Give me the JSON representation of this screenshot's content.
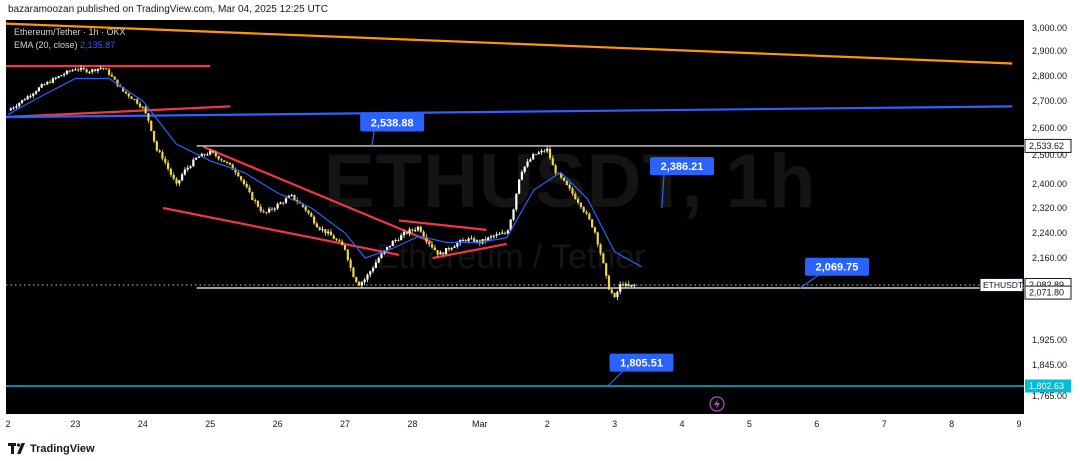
{
  "header": {
    "publisher_line": "bazaramoozan published on TradingView.com, Mar 04, 2025 12:25 UTC"
  },
  "legend": {
    "symbol_line": "Ethereum/Tether · 1h · OKX",
    "ema_label": "EMA (20, close)",
    "ema_value": "2,135.87"
  },
  "watermark": {
    "ticker": "ETHUSDT, 1h",
    "name": "Ethereum / Tether"
  },
  "footer": {
    "brand": "TradingView"
  },
  "colors": {
    "background": "#000000",
    "ema": "#2962ff",
    "candle_up": "#ffffff",
    "candle_down": "#f0d840",
    "trendline_red": "#f23645",
    "trendline_orange": "#ff9800",
    "trendline_blue": "#2962ff",
    "support_cyan": "#00bcd4",
    "callout": "#2962ff"
  },
  "chart_data": {
    "type": "candlestick",
    "title": "Ethereum/Tether · 1h · OKX",
    "price_axis": {
      "ticks": [
        "3,000.00",
        "2,900.00",
        "2,800.00",
        "2,700.00",
        "2,600.00",
        "2,500.00",
        "2,400.00",
        "2,320.00",
        "2,240.00",
        "2,160.00",
        "1,925.00",
        "1,845.00",
        "1,765.00"
      ],
      "ylim": [
        1750,
        3030
      ]
    },
    "time_axis": {
      "ticks": [
        "2",
        "23",
        "24",
        "25",
        "26",
        "27",
        "28",
        "Mar",
        "2",
        "3",
        "4",
        "5",
        "6",
        "7",
        "8",
        "9"
      ]
    },
    "price_path": [
      [
        0.0,
        2665
      ],
      [
        0.2,
        2700
      ],
      [
        0.5,
        2760
      ],
      [
        0.8,
        2805
      ],
      [
        1.0,
        2830
      ],
      [
        1.2,
        2820
      ],
      [
        1.4,
        2835
      ],
      [
        1.5,
        2810
      ],
      [
        1.7,
        2740
      ],
      [
        1.9,
        2700
      ],
      [
        2.0,
        2675
      ],
      [
        2.1,
        2620
      ],
      [
        2.2,
        2520
      ],
      [
        2.3,
        2490
      ],
      [
        2.4,
        2440
      ],
      [
        2.5,
        2395
      ],
      [
        2.6,
        2440
      ],
      [
        2.8,
        2490
      ],
      [
        3.0,
        2510
      ],
      [
        3.2,
        2480
      ],
      [
        3.4,
        2440
      ],
      [
        3.6,
        2360
      ],
      [
        3.8,
        2300
      ],
      [
        4.0,
        2330
      ],
      [
        4.2,
        2360
      ],
      [
        4.4,
        2320
      ],
      [
        4.6,
        2260
      ],
      [
        4.8,
        2230
      ],
      [
        5.0,
        2190
      ],
      [
        5.1,
        2120
      ],
      [
        5.2,
        2085
      ],
      [
        5.3,
        2100
      ],
      [
        5.5,
        2160
      ],
      [
        5.7,
        2210
      ],
      [
        5.9,
        2240
      ],
      [
        6.1,
        2260
      ],
      [
        6.2,
        2220
      ],
      [
        6.4,
        2170
      ],
      [
        6.6,
        2200
      ],
      [
        6.8,
        2220
      ],
      [
        7.0,
        2210
      ],
      [
        7.2,
        2230
      ],
      [
        7.4,
        2240
      ],
      [
        7.5,
        2320
      ],
      [
        7.6,
        2440
      ],
      [
        7.8,
        2500
      ],
      [
        8.0,
        2520
      ],
      [
        8.1,
        2450
      ],
      [
        8.3,
        2390
      ],
      [
        8.5,
        2330
      ],
      [
        8.7,
        2250
      ],
      [
        8.8,
        2170
      ],
      [
        8.9,
        2080
      ],
      [
        9.0,
        2040
      ],
      [
        9.1,
        2090
      ],
      [
        9.2,
        2075
      ],
      [
        9.3,
        2083
      ]
    ],
    "ema": {
      "name": "EMA (20, close)",
      "path": [
        [
          0.0,
          2650
        ],
        [
          0.5,
          2720
        ],
        [
          1.0,
          2790
        ],
        [
          1.5,
          2790
        ],
        [
          2.0,
          2700
        ],
        [
          2.5,
          2540
        ],
        [
          3.0,
          2480
        ],
        [
          3.5,
          2440
        ],
        [
          4.0,
          2370
        ],
        [
          4.5,
          2320
        ],
        [
          5.0,
          2240
        ],
        [
          5.3,
          2160
        ],
        [
          5.7,
          2190
        ],
        [
          6.1,
          2230
        ],
        [
          6.5,
          2210
        ],
        [
          7.0,
          2210
        ],
        [
          7.4,
          2225
        ],
        [
          7.8,
          2380
        ],
        [
          8.2,
          2440
        ],
        [
          8.6,
          2350
        ],
        [
          9.0,
          2180
        ],
        [
          9.4,
          2135
        ]
      ]
    },
    "drawings": [
      {
        "kind": "trendline",
        "color": "red",
        "points": [
          [
            -0.1,
            2840
          ],
          [
            3.0,
            2840
          ]
        ]
      },
      {
        "kind": "trendline",
        "color": "red",
        "points": [
          [
            -0.1,
            2640
          ],
          [
            3.3,
            2680
          ]
        ]
      },
      {
        "kind": "trendline",
        "color": "orange",
        "points": [
          [
            -0.1,
            3020
          ],
          [
            14.9,
            2850
          ]
        ]
      },
      {
        "kind": "trendline",
        "color": "blue",
        "points": [
          [
            -0.1,
            2640
          ],
          [
            14.9,
            2680
          ]
        ]
      },
      {
        "kind": "trendline",
        "color": "red",
        "points": [
          [
            2.9,
            2530
          ],
          [
            6.3,
            2210
          ]
        ]
      },
      {
        "kind": "trendline",
        "color": "red",
        "points": [
          [
            2.3,
            2320
          ],
          [
            5.8,
            2170
          ]
        ]
      },
      {
        "kind": "trendline",
        "color": "red",
        "points": [
          [
            5.8,
            2280
          ],
          [
            7.1,
            2250
          ]
        ]
      },
      {
        "kind": "trendline",
        "color": "red",
        "points": [
          [
            6.3,
            2160
          ],
          [
            7.4,
            2205
          ]
        ]
      },
      {
        "kind": "hline",
        "color": "white",
        "from": 2.8,
        "value": 2533.62
      },
      {
        "kind": "hline",
        "color": "white",
        "from": 2.8,
        "value": 2071.8
      },
      {
        "kind": "hline",
        "color": "cyan",
        "from": -0.1,
        "value": 1802.63
      }
    ],
    "callouts": [
      {
        "text": "2,538.88",
        "x": 5.7,
        "value": 2538.88,
        "anchor_x": 5.4,
        "anchor_value": 2533.62
      },
      {
        "text": "2,386.21",
        "x": 10.0,
        "value": 2386.21,
        "anchor_x": 9.7,
        "anchor_value": 2320
      },
      {
        "text": "2,069.75",
        "x": 12.3,
        "value": 2069.75,
        "anchor_x": 11.75,
        "anchor_value": 2071.8
      },
      {
        "text": "1,805.51",
        "x": 9.4,
        "value": 1805.51,
        "anchor_x": 8.9,
        "anchor_value": 1802.63
      }
    ],
    "axis_labels": {
      "level_2533": "2,533.62",
      "last_symbol": "ETHUSDT",
      "last_price": "2,082.89",
      "countdown": "34:45",
      "level_2071": "2,071.80",
      "level_1802": "1,802.63"
    }
  }
}
